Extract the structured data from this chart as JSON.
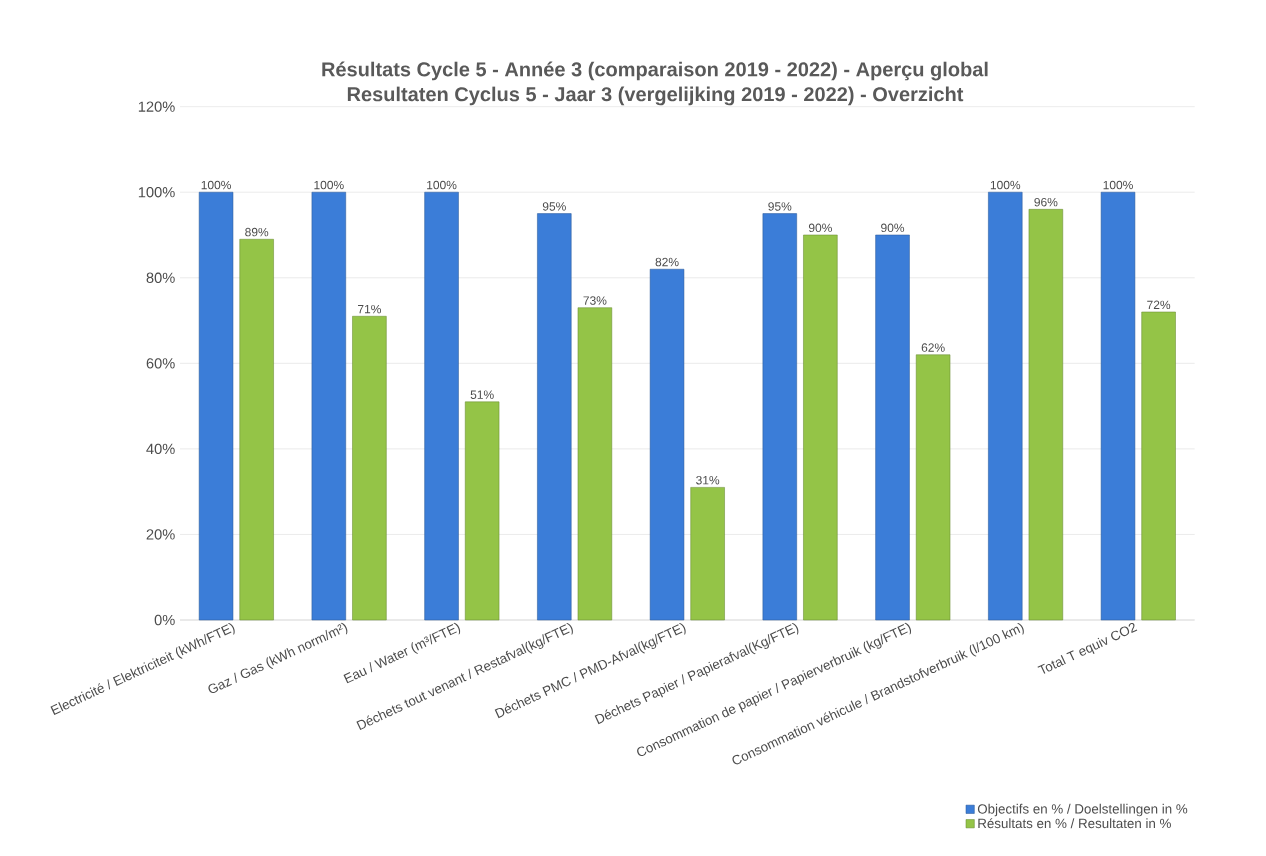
{
  "chart_data": {
    "type": "bar",
    "title": "Résultats Cycle 5 - Année 3 (comparaison 2019 - 2022) - Aperçu global",
    "subtitle": "Resultaten Cyclus 5 - Jaar 3 (vergelijking 2019 - 2022) -  Overzicht",
    "categories": [
      "Electricité / Elektriciteit (kWh/FTE)",
      "Gaz / Gas (kWh norm/m²)",
      "Eau / Water (m³/FTE)",
      "Déchets tout venant / Restafval(kg/FTE)",
      "Déchets PMC / PMD-Afval(kg/FTE)",
      "Déchets Papier / Papierafval(Kg/FTE)",
      "Consommation de papier / Papierverbruik (kg/FTE)",
      "Consommation véhicule / Brandstofverbruik (l/100 km)",
      "Total T equiv CO2"
    ],
    "series": [
      {
        "name": "Objectifs en % / Doelstellingen in %",
        "color": "#3b7dd8",
        "values": [
          100,
          100,
          100,
          95,
          82,
          95,
          90,
          100,
          100
        ],
        "value_labels": [
          "100%",
          "100%",
          "100%",
          "95%",
          "82%",
          "95%",
          "90%",
          "100%",
          "100%"
        ]
      },
      {
        "name": "Résultats en % / Resultaten in %",
        "color": "#94c447",
        "values": [
          89,
          71,
          51,
          73,
          31,
          90,
          62,
          96,
          72
        ],
        "value_labels": [
          "89%",
          "71%",
          "51%",
          "73%",
          "31%",
          "90%",
          "62%",
          "96%",
          "72%"
        ]
      }
    ],
    "ylim": [
      0,
      120
    ],
    "yticks": [
      {
        "value": 0,
        "label": "0%"
      },
      {
        "value": 20,
        "label": "20%"
      },
      {
        "value": 40,
        "label": "40%"
      },
      {
        "value": 60,
        "label": "60%"
      },
      {
        "value": 80,
        "label": "80%"
      },
      {
        "value": 100,
        "label": "100%"
      },
      {
        "value": 120,
        "label": "120%"
      }
    ],
    "grid": "y",
    "legend": "bottom right"
  }
}
